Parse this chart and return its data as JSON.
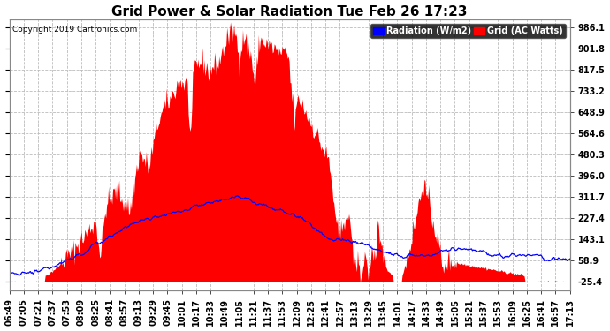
{
  "title": "Grid Power & Solar Radiation Tue Feb 26 17:23",
  "copyright": "Copyright 2019 Cartronics.com",
  "legend_radiation": "Radiation (W/m2)",
  "legend_grid": "Grid (AC Watts)",
  "yticks": [
    -25.4,
    58.9,
    143.1,
    227.4,
    311.7,
    396.0,
    480.3,
    564.6,
    648.9,
    733.2,
    817.5,
    901.8,
    986.1
  ],
  "ylim_min": -60,
  "ylim_max": 1020,
  "bg_color": "#ffffff",
  "plot_bg_color": "#ffffff",
  "grid_color": "#bbbbbb",
  "radiation_color": "#ff0000",
  "grid_power_color": "#0000ff",
  "title_fontsize": 11,
  "tick_fontsize": 7,
  "x_tick_labels": [
    "06:49",
    "07:05",
    "07:21",
    "07:37",
    "07:53",
    "08:09",
    "08:25",
    "08:41",
    "08:57",
    "09:13",
    "09:29",
    "09:45",
    "10:01",
    "10:17",
    "10:33",
    "10:49",
    "11:05",
    "11:21",
    "11:37",
    "11:53",
    "12:09",
    "12:25",
    "12:41",
    "12:57",
    "13:13",
    "13:29",
    "13:45",
    "14:01",
    "14:17",
    "14:33",
    "14:49",
    "15:05",
    "15:21",
    "15:37",
    "15:53",
    "16:09",
    "16:25",
    "16:41",
    "16:57",
    "17:13"
  ],
  "n_points": 640
}
